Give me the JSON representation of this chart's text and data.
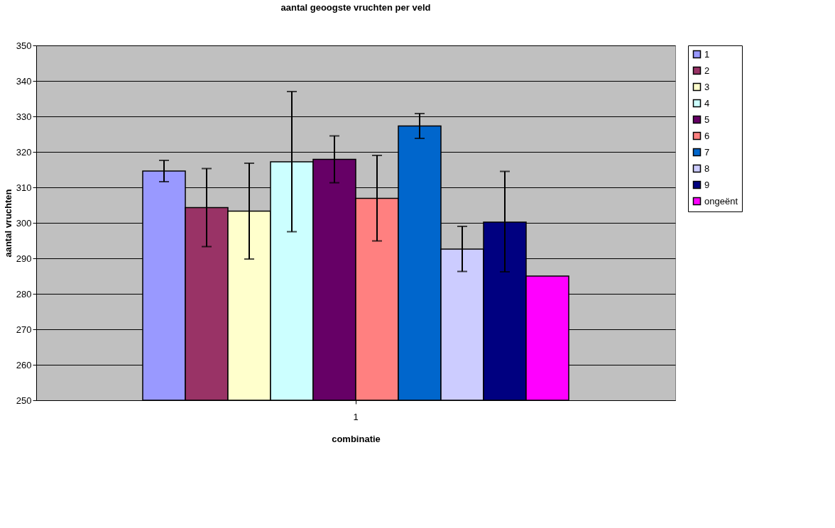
{
  "chart_data": {
    "type": "bar",
    "title": "aantal geoogste vruchten per veld",
    "xlabel": "combinatie",
    "ylabel": "aantal vruchten",
    "categories": [
      "1"
    ],
    "series": [
      {
        "name": "1",
        "color": "#9999ff",
        "values": [
          314.6
        ],
        "errors": [
          [
            311.6,
            317.6
          ]
        ]
      },
      {
        "name": "2",
        "color": "#993366",
        "values": [
          304.3
        ],
        "errors": [
          [
            293.3,
            315.3
          ]
        ]
      },
      {
        "name": "3",
        "color": "#ffffcc",
        "values": [
          303.3
        ],
        "errors": [
          [
            289.8,
            316.8
          ]
        ]
      },
      {
        "name": "4",
        "color": "#ccffff",
        "values": [
          317.2
        ],
        "errors": [
          [
            297.5,
            337.0
          ]
        ]
      },
      {
        "name": "5",
        "color": "#660066",
        "values": [
          317.9
        ],
        "errors": [
          [
            311.3,
            324.5
          ]
        ]
      },
      {
        "name": "6",
        "color": "#ff8080",
        "values": [
          306.9
        ],
        "errors": [
          [
            294.9,
            319.0
          ]
        ]
      },
      {
        "name": "7",
        "color": "#0066cc",
        "values": [
          327.3
        ],
        "errors": [
          [
            323.8,
            330.8
          ]
        ]
      },
      {
        "name": "8",
        "color": "#ccccff",
        "values": [
          292.6
        ],
        "errors": [
          [
            286.3,
            299.0
          ]
        ]
      },
      {
        "name": "9",
        "color": "#000080",
        "values": [
          300.2
        ],
        "errors": [
          [
            286.2,
            314.5
          ]
        ]
      },
      {
        "name": "ongeënt",
        "color": "#ff00ff",
        "values": [
          285.0
        ]
      }
    ],
    "ylim": [
      250,
      350
    ],
    "yticks": [
      250,
      260,
      270,
      280,
      290,
      300,
      310,
      320,
      330,
      340,
      350
    ],
    "grid": "y",
    "legend": "right"
  }
}
